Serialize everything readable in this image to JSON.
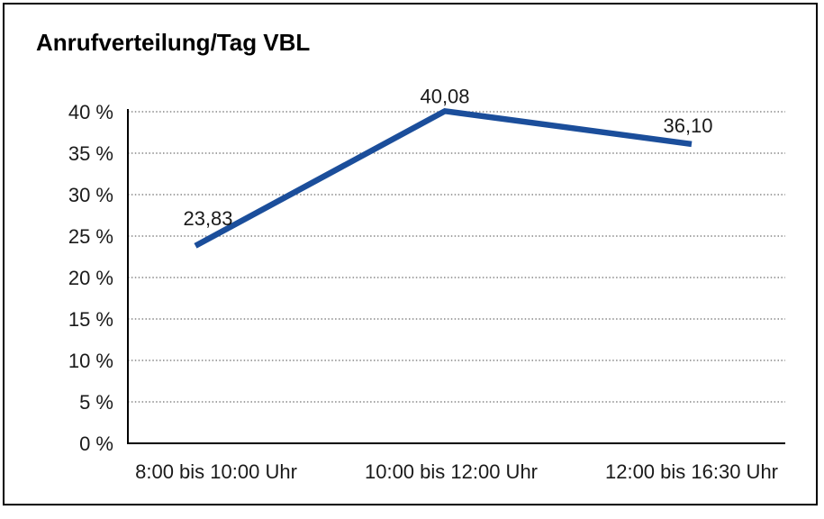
{
  "page": {
    "background_color": "#ffffff",
    "border_color": "#000000"
  },
  "chart_data": {
    "type": "line",
    "title": "Anrufverteilung/Tag VBL",
    "categories": [
      "8:00 bis 10:00 Uhr",
      "10:00 bis 12:00 Uhr",
      "12:00 bis 16:30 Uhr"
    ],
    "series": [
      {
        "name": "Anrufverteilung/Tag VBL",
        "values": [
          23.83,
          40.08,
          36.1
        ],
        "point_labels": [
          "23,83",
          "40,08",
          "36,10"
        ]
      }
    ],
    "xlabel": "",
    "ylabel": "",
    "ylim": [
      0,
      40
    ],
    "ytick_step": 5,
    "ytick_labels": [
      "0 %",
      "5 %",
      "10 %",
      "15 %",
      "20 %",
      "25 %",
      "30 %",
      "35 %",
      "40 %"
    ],
    "grid": "horizontal-dotted",
    "legend_position": "none",
    "colors": {
      "line": "#1b4e9b",
      "grid": "#6e6e6e",
      "axis": "#000000",
      "text": "#1a1a1a",
      "title": "#000000"
    }
  }
}
